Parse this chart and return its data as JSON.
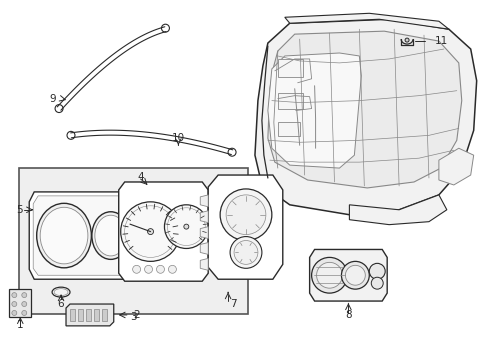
{
  "background_color": "#ffffff",
  "fig_width": 4.89,
  "fig_height": 3.6,
  "dpi": 100,
  "dark": "#2a2a2a",
  "gray": "#888888",
  "lt_gray": "#cccccc",
  "fill_light": "#f2f2f2",
  "fill_box": "#ebebeb"
}
